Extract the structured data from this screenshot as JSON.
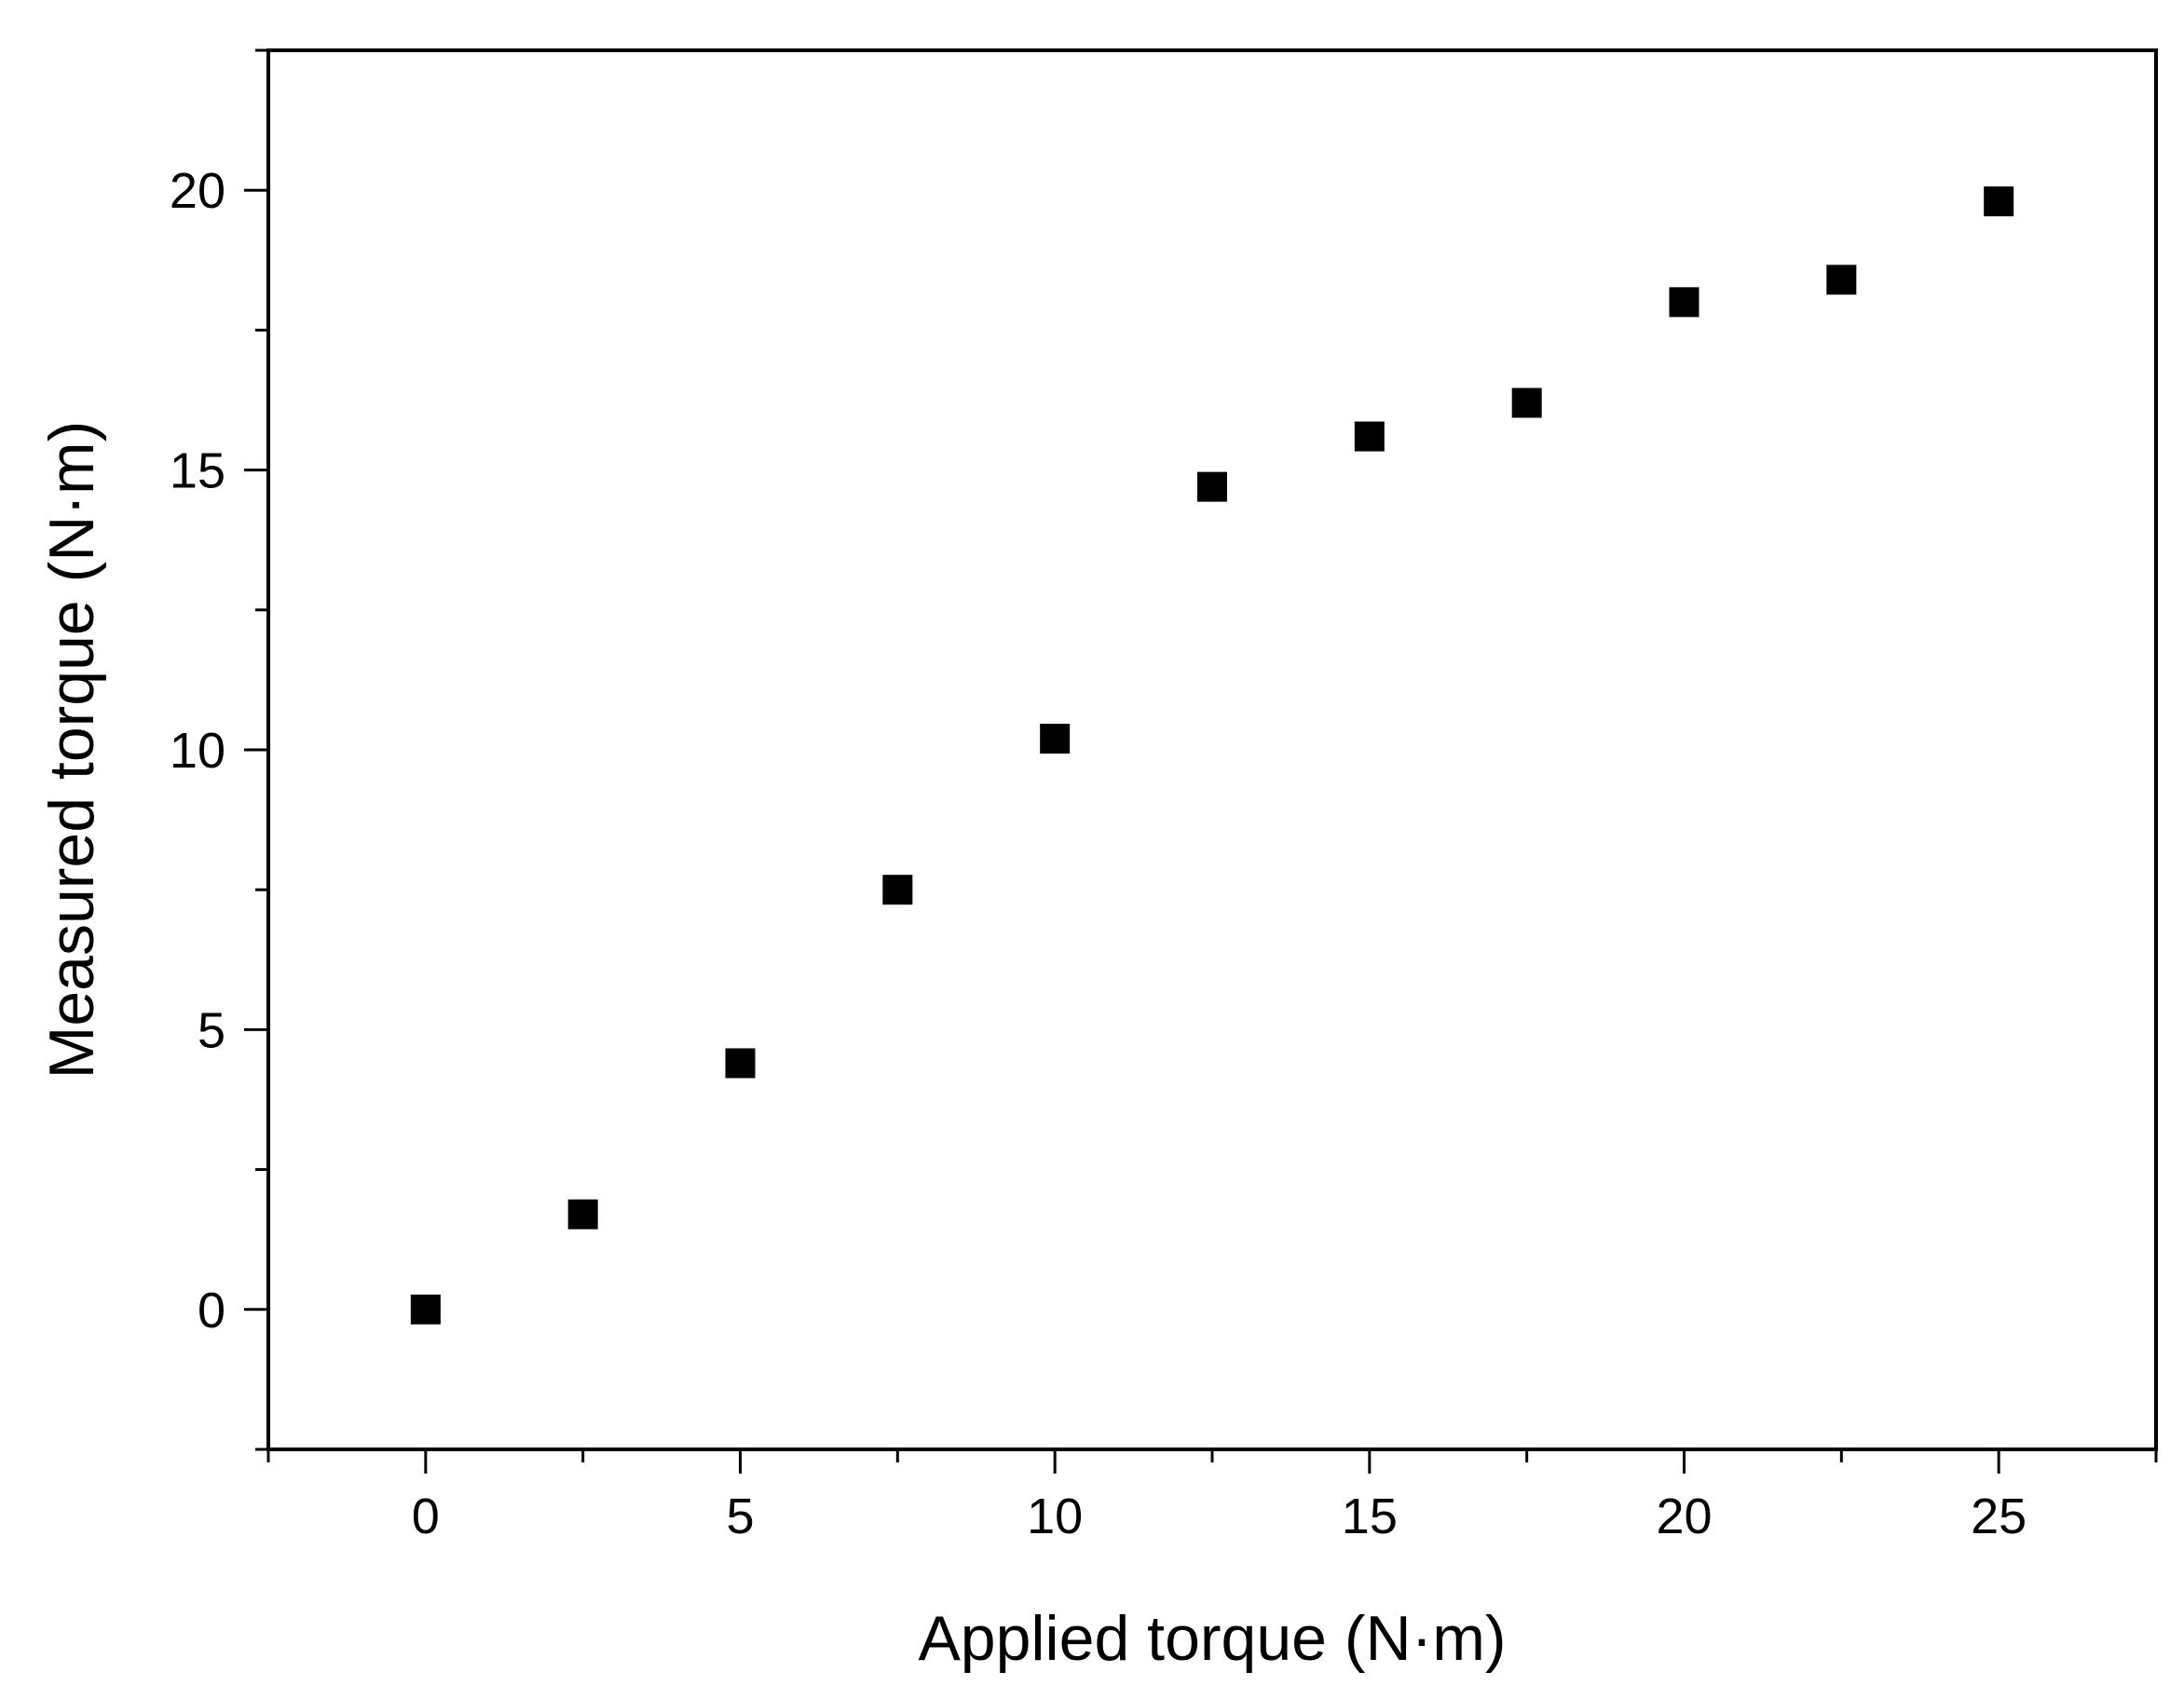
{
  "chart_data": {
    "type": "scatter",
    "title": "",
    "xlabel": "Applied torque (N·m)",
    "ylabel": "Measured torque (N·m)",
    "xlim": [
      -2.5,
      27.5
    ],
    "ylim": [
      -2.5,
      22.5
    ],
    "xticks": [
      0,
      5,
      10,
      15,
      20,
      25
    ],
    "yticks": [
      0,
      5,
      10,
      15,
      20
    ],
    "xtick_labels": [
      "0",
      "5",
      "10",
      "15",
      "20",
      "25"
    ],
    "ytick_labels": [
      "0",
      "5",
      "10",
      "15",
      "20"
    ],
    "x_minor_step": 2.5,
    "y_minor_step": 2.5,
    "grid": false,
    "marker": "square",
    "marker_color": "#000000",
    "series": [
      {
        "x": [
          0,
          2.5,
          5,
          7.5,
          10,
          12.5,
          15,
          17.5,
          20,
          22.5,
          25
        ],
        "y": [
          0,
          1.7,
          4.4,
          7.5,
          10.2,
          14.7,
          15.6,
          16.2,
          18.0,
          18.4,
          19.8
        ]
      }
    ]
  }
}
